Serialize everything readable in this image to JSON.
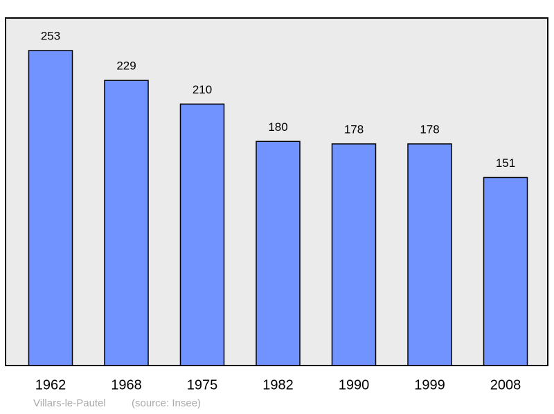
{
  "chart_data": {
    "type": "bar",
    "title": "Villars-le-Pautel",
    "source": "(source: Insee)",
    "categories": [
      "1962",
      "1968",
      "1975",
      "1982",
      "1990",
      "1999",
      "2008"
    ],
    "values": [
      253,
      229,
      210,
      180,
      178,
      178,
      151
    ],
    "color": "#7093ff"
  }
}
